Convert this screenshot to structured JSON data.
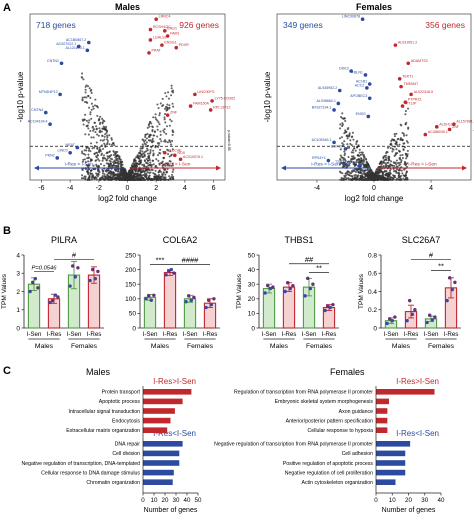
{
  "panel_labels": [
    "A",
    "B",
    "C"
  ],
  "colors": {
    "up": "#c0282d",
    "down": "#2b4aa0",
    "gray": "#333333",
    "sen_bar": "#4f9a45",
    "res_bar": "#c0282d",
    "sen_box": "#9bd08e",
    "res_box": "#e89a9a"
  },
  "volcano_common": {
    "xlabel": "log2 fold change",
    "ylabel": "-log10 p-value",
    "threshold_label": "p-value=0.05",
    "arrow_left": "I-Res < I-Sen",
    "arrow_right": "I-Res > I-Sen"
  },
  "chart_data": [
    {
      "type": "scatter",
      "title": "Males",
      "count_down": "718 genes",
      "count_up": "926 genes",
      "xlim": [
        -6.8,
        6.8
      ],
      "xticks": [
        -6,
        -4,
        -2,
        0,
        2,
        4,
        6
      ],
      "ylim": [
        0,
        6.4
      ],
      "threshold_y": 1.3,
      "labeled_up": [
        {
          "label": "LRRC4",
          "x": 2.0,
          "y": 6.2
        },
        {
          "label": "RCSH4/2C",
          "x": 1.6,
          "y": 5.8
        },
        {
          "label": "ENG1",
          "x": 2.6,
          "y": 5.75
        },
        {
          "label": "FAM1",
          "x": 2.8,
          "y": 5.55
        },
        {
          "label": "LGALS2",
          "x": 1.6,
          "y": 5.4
        },
        {
          "label": "ENSG1",
          "x": 2.4,
          "y": 5.2
        },
        {
          "label": "PDXR",
          "x": 3.4,
          "y": 5.1
        },
        {
          "label": "PRAT",
          "x": 1.5,
          "y": 4.9
        },
        {
          "label": "LINC00FG",
          "x": 4.7,
          "y": 3.3
        },
        {
          "label": "LY75-CD302",
          "x": 5.9,
          "y": 3.05
        },
        {
          "label": "FAM150A",
          "x": 4.4,
          "y": 2.85
        },
        {
          "label": "RPL13P12",
          "x": 5.8,
          "y": 2.7
        },
        {
          "label": "ZNF",
          "x": 2.8,
          "y": 2.5
        },
        {
          "label": "CLEC4E",
          "x": 2.6,
          "y": 1.05
        },
        {
          "label": "NOX",
          "x": 3.3,
          "y": 0.95
        },
        {
          "label": "AC010076.1",
          "x": 3.7,
          "y": 0.8
        }
      ],
      "labeled_down": [
        {
          "label": "AC1B0867.2",
          "x": -2.7,
          "y": 5.3
        },
        {
          "label": "AC007022.1",
          "x": -3.4,
          "y": 5.15
        },
        {
          "label": "AL121893.1",
          "x": -2.8,
          "y": 5.0
        },
        {
          "label": "CNTN1",
          "x": -4.6,
          "y": 4.5
        },
        {
          "label": "MTND4P12",
          "x": -4.7,
          "y": 3.3
        },
        {
          "label": "CNTN4",
          "x": -5.7,
          "y": 2.6
        },
        {
          "label": "AC104104.4",
          "x": -5.4,
          "y": 2.15
        },
        {
          "label": "NEAT",
          "x": -3.5,
          "y": 1.25
        },
        {
          "label": "LINC0",
          "x": -4.0,
          "y": 1.05
        },
        {
          "label": "PKN2",
          "x": -4.9,
          "y": 0.85
        }
      ]
    },
    {
      "type": "scatter",
      "title": "Females",
      "count_down": "349 genes",
      "count_up": "356 genes",
      "xlim": [
        -6.8,
        6.8
      ],
      "xticks": [
        -4,
        0,
        4
      ],
      "ylim": [
        0,
        6.4
      ],
      "threshold_y": 1.3,
      "labeled_up": [
        {
          "label": "AL031651.2",
          "x": 1.5,
          "y": 5.2
        },
        {
          "label": "ADAMTS2",
          "x": 2.4,
          "y": 4.5
        },
        {
          "label": "TEKT1",
          "x": 1.8,
          "y": 3.9
        },
        {
          "label": "TMEM47",
          "x": 1.9,
          "y": 3.6
        },
        {
          "label": "AL022318.5",
          "x": 2.6,
          "y": 3.3
        },
        {
          "label": "PTPRZ1",
          "x": 2.2,
          "y": 3.0
        },
        {
          "label": "MT1JP",
          "x": 2.0,
          "y": 2.85
        },
        {
          "label": "ALDH1L2",
          "x": 4.4,
          "y": 2.05
        },
        {
          "label": "AL157891.1",
          "x": 5.6,
          "y": 2.15
        },
        {
          "label": "ZNF",
          "x": 5.3,
          "y": 1.95
        },
        {
          "label": "AC486035.1",
          "x": 3.6,
          "y": 1.75
        }
      ],
      "labeled_down": [
        {
          "label": "LINC00678",
          "x": -0.8,
          "y": 6.2
        },
        {
          "label": "DKK3",
          "x": -1.6,
          "y": 4.2
        },
        {
          "label": "FBLN1",
          "x": -0.6,
          "y": 4.05
        },
        {
          "label": "AC1B1",
          "x": -0.3,
          "y": 3.7
        },
        {
          "label": "ACC2",
          "x": -0.5,
          "y": 3.55
        },
        {
          "label": "AL935952.2",
          "x": -2.4,
          "y": 3.45
        },
        {
          "label": "APOBEC3",
          "x": -0.3,
          "y": 3.15
        },
        {
          "label": "AL938660.1",
          "x": -2.5,
          "y": 2.95
        },
        {
          "label": "BX927194.1",
          "x": -2.8,
          "y": 2.7
        },
        {
          "label": "ENSG",
          "x": -0.4,
          "y": 2.45
        },
        {
          "label": "AC105346.1",
          "x": -2.8,
          "y": 1.45
        },
        {
          "label": "DDX3Y",
          "x": -2.0,
          "y": 1.2
        },
        {
          "label": "RPS4Y1",
          "x": -3.2,
          "y": 0.75
        },
        {
          "label": "TSIX",
          "x": -2.0,
          "y": 0.6
        },
        {
          "label": "USP9Y",
          "x": -1.0,
          "y": 0.55
        }
      ]
    },
    {
      "type": "bar",
      "title": "PILRA",
      "ylabel": "TPM Values",
      "categories": [
        "I-Sen",
        "I-Res",
        "I-Sen",
        "I-Res"
      ],
      "groups": [
        "Males",
        "Females"
      ],
      "ylim": [
        0,
        4
      ],
      "yticks": [
        0,
        1,
        2,
        3,
        4
      ],
      "values": [
        2.4,
        1.6,
        2.9,
        2.9
      ],
      "errors": [
        0.35,
        0.25,
        0.75,
        0.45
      ],
      "points": [
        [
          2.0,
          2.5,
          2.7,
          2.2
        ],
        [
          1.4,
          1.5,
          1.8,
          1.7
        ],
        [
          2.3,
          3.4,
          2.8,
          3.3
        ],
        [
          2.6,
          3.2,
          2.7,
          3.1
        ]
      ],
      "annotations": [
        {
          "text": "P=0.0546",
          "from": 0,
          "to": 1,
          "y": 3.1
        },
        {
          "text": "#",
          "from": 1,
          "to": 3,
          "y": 3.75
        }
      ]
    },
    {
      "type": "bar",
      "title": "COL6A2",
      "ylabel": "",
      "categories": [
        "I-Sen",
        "I-Res",
        "I-Sen",
        "I-Res"
      ],
      "groups": [
        "Males",
        "Females"
      ],
      "ylim": [
        0,
        250
      ],
      "yticks": [
        0,
        50,
        100,
        150,
        200,
        250
      ],
      "values": [
        105,
        190,
        100,
        85
      ],
      "errors": [
        10,
        10,
        12,
        15
      ],
      "points": [
        [
          100,
          110,
          95,
          112
        ],
        [
          182,
          195,
          200,
          188
        ],
        [
          90,
          110,
          95,
          105
        ],
        [
          70,
          95,
          80,
          100
        ]
      ],
      "annotations": [
        {
          "text": "***",
          "from": 0,
          "to": 1,
          "y": 218
        },
        {
          "text": "####",
          "from": 1,
          "to": 3,
          "y": 218
        }
      ]
    },
    {
      "type": "bar",
      "title": "THBS1",
      "ylabel": "TPM Values",
      "categories": [
        "I-Sen",
        "I-Res",
        "I-Sen",
        "I-Res"
      ],
      "groups": [
        "Males",
        "Females"
      ],
      "ylim": [
        0,
        50
      ],
      "yticks": [
        0,
        10,
        20,
        30,
        40,
        50
      ],
      "values": [
        27,
        28,
        28,
        14
      ],
      "errors": [
        3,
        3,
        6,
        2
      ],
      "points": [
        [
          24,
          29,
          27,
          28
        ],
        [
          25,
          31,
          27,
          29
        ],
        [
          22,
          34,
          27,
          30
        ],
        [
          12,
          15,
          14,
          16
        ]
      ],
      "annotations": [
        {
          "text": "##",
          "from": 1,
          "to": 3,
          "y": 44
        },
        {
          "text": "**",
          "from": 2,
          "to": 3,
          "y": 38
        }
      ]
    },
    {
      "type": "bar",
      "title": "SLC26A7",
      "ylabel": "TPM Values",
      "categories": [
        "I-Sen",
        "I-Res",
        "I-Sen",
        "I-Res"
      ],
      "groups": [
        "Males",
        "Females"
      ],
      "ylim": [
        0,
        0.8
      ],
      "yticks": [
        0,
        0.2,
        0.4,
        0.6,
        0.8
      ],
      "values": [
        0.08,
        0.18,
        0.1,
        0.44
      ],
      "errors": [
        0.03,
        0.07,
        0.03,
        0.11
      ],
      "points": [
        [
          0.05,
          0.1,
          0.08,
          0.12
        ],
        [
          0.08,
          0.3,
          0.15,
          0.2
        ],
        [
          0.06,
          0.14,
          0.09,
          0.12
        ],
        [
          0.3,
          0.55,
          0.42,
          0.5
        ]
      ],
      "annotations": [
        {
          "text": "#",
          "from": 1,
          "to": 3,
          "y": 0.75
        },
        {
          "text": "**",
          "from": 2,
          "to": 3,
          "y": 0.63
        }
      ]
    },
    {
      "type": "bar",
      "orientation": "horizontal",
      "title": "Males",
      "xlabel": "Number of genes",
      "xlim": [
        0,
        50
      ],
      "xticks": [
        0,
        10,
        20,
        30,
        40,
        50
      ],
      "up_label": "I-Res>I-Sen",
      "down_label": "I-Res<I-Sen",
      "up": {
        "categories": [
          "Protein transport",
          "Apoptotic process",
          "Intracellular signal transduction",
          "Endocytosis",
          "Extracellular matrix organization"
        ],
        "values": [
          44,
          36,
          29,
          25,
          22
        ]
      },
      "down": {
        "categories": [
          "DNA repair",
          "Cell division",
          "Negative regulation of transcription, DNA-templated",
          "Cellular response to DNA damage stimulus",
          "Chromatin organization"
        ],
        "values": [
          36,
          33,
          33,
          28,
          27
        ]
      }
    },
    {
      "type": "bar",
      "orientation": "horizontal",
      "title": "Females",
      "xlabel": "Number of genes",
      "xlim": [
        0,
        40
      ],
      "xticks": [
        0,
        10,
        20,
        30,
        40
      ],
      "up_label": "I-Res>I-Sen",
      "down_label": "I-Res<I-Sen",
      "up": {
        "categories": [
          "Regulation of transcription from RNA polymerase II promoter",
          "Embryonic skeletal system morphogenesis",
          "Axon guidance",
          "Anterior/posterior pattern specification",
          "Cellular response to hypoxia"
        ],
        "values": [
          36,
          8,
          7,
          7,
          7
        ]
      },
      "down": {
        "categories": [
          "Negative regulation of transcription from RNA polymerase II promoter",
          "Cell adhesion",
          "Positive regulation of apoptotic process",
          "Negative regulation of cell proliferation",
          "Actin cytoskeleton organization"
        ],
        "values": [
          21,
          18,
          18,
          18,
          12
        ]
      }
    }
  ]
}
